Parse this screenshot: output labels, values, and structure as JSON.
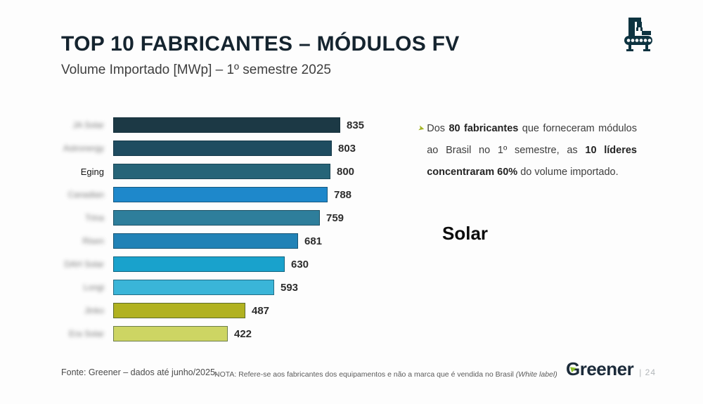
{
  "header": {
    "title": "TOP 10 FABRICANTES – MÓDULOS FV",
    "subtitle": "Volume Importado [MWp] – 1º semestre 2025"
  },
  "icons": {
    "factory_icon": "factory-conveyor-icon",
    "factory_icon_color": "#0d3340",
    "annotation_bullet_glyph": "➤",
    "annotation_bullet_color": "#a2b421"
  },
  "annotation": {
    "segments": [
      {
        "text": "Dos ",
        "bold": false
      },
      {
        "text": "80 fabricantes",
        "bold": true
      },
      {
        "text": " que forneceram módulos ao Brasil no 1º semestre, as ",
        "bold": false
      },
      {
        "text": "10 líderes concentraram 60%",
        "bold": true
      },
      {
        "text": " do volume importado.",
        "bold": false
      }
    ]
  },
  "watermark": "Solar",
  "chart_data": {
    "type": "bar",
    "orientation": "horizontal",
    "title": "TOP 10 FABRICANTES – MÓDULOS FV",
    "subtitle": "Volume Importado [MWp] – 1º semestre 2025",
    "unit": "MWp",
    "xlim": [
      0,
      900
    ],
    "grid": false,
    "value_labels": true,
    "categories": [
      "JA Solar",
      "Astronergy",
      "Eging",
      "Canadian",
      "Trina",
      "Risen",
      "DAH Solar",
      "Longi",
      "Jinko",
      "Era Solar"
    ],
    "labels_blurred": [
      true,
      true,
      false,
      true,
      true,
      true,
      true,
      true,
      true,
      true
    ],
    "values": [
      835,
      803,
      800,
      788,
      759,
      681,
      630,
      593,
      487,
      422
    ],
    "bar_colors": [
      "#1c3945",
      "#1e4c60",
      "#266478",
      "#1e88cb",
      "#2e7e9b",
      "#2182b6",
      "#19a2cc",
      "#3ab5d8",
      "#b1b220",
      "#cdd563"
    ]
  },
  "footer": {
    "source": "Fonte: Greener – dados até junho/2025.",
    "note": "NOTA: Refere-se aos fabricantes dos equipamentos e não a marca que é vendida no Brasil ",
    "note_suffix_italic": "(White label)",
    "brand": "Greener",
    "brand_leaf_color": "#8cbf2a",
    "page_label": "| 24"
  }
}
